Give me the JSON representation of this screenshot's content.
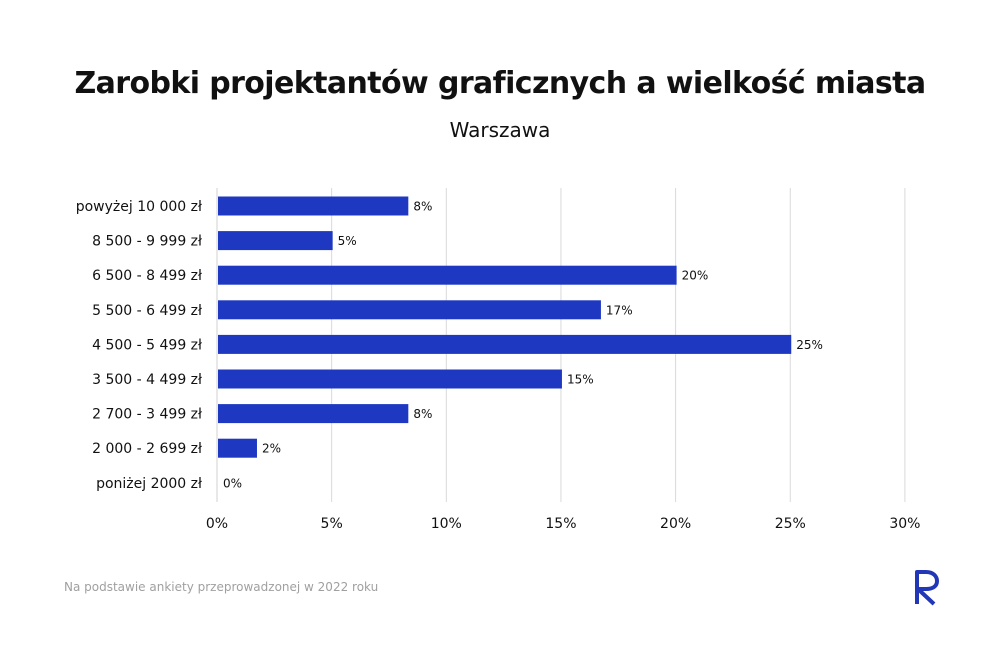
{
  "title": "Zarobki projektantów graficznych a wielkość miasta",
  "subtitle": "Warszawa",
  "footnote": "Na podstawie ankiety przeprowadzonej w 2022 roku",
  "logo": {
    "icon": "brand-r-logo-icon",
    "color": "#2236b8"
  },
  "colors": {
    "bar": "#1f38c2",
    "grid": "#d9d9d9",
    "text": "#111111"
  },
  "chart_data": {
    "type": "bar",
    "orientation": "horizontal",
    "categories": [
      "powyżej 10 000 zł",
      "8 500 - 9 999 zł",
      "6 500 - 8 499 zł",
      "5 500 - 6 499 zł",
      "4 500 - 5 499 zł",
      "3 500 - 4 499 zł",
      "2 700 - 3 499 zł",
      "2 000 - 2 699 zł",
      "poniżej 2000 zł"
    ],
    "values": [
      8.3,
      5,
      20,
      16.7,
      25,
      15,
      8.3,
      1.7,
      0
    ],
    "value_labels": [
      "8%",
      "5%",
      "20%",
      "17%",
      "25%",
      "15%",
      "8%",
      "2%",
      "0%"
    ],
    "xlim": [
      0,
      30
    ],
    "x_ticks": [
      0,
      5,
      10,
      15,
      20,
      25,
      30
    ],
    "x_tick_labels": [
      "0%",
      "5%",
      "10%",
      "15%",
      "20%",
      "25%",
      "30%"
    ],
    "grid": "vertical",
    "legend": "none"
  }
}
